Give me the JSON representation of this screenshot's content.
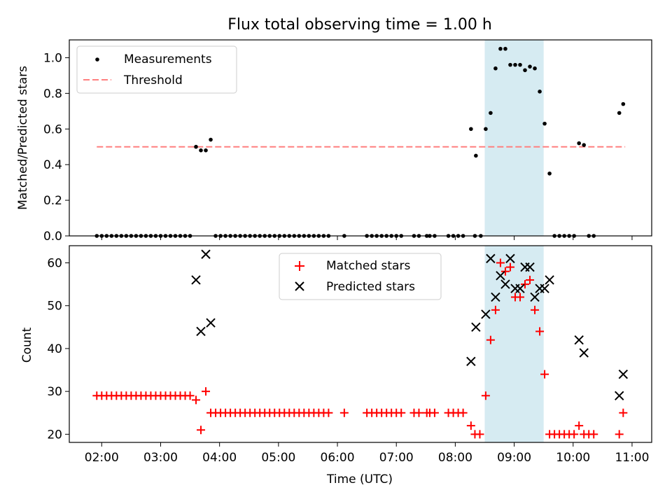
{
  "figure": {
    "title": "Flux total observing time = 1.00 h"
  },
  "colors": {
    "measurement": "#000000",
    "threshold": "#ff7f7f",
    "matched": "#ff0000",
    "predicted": "#000000",
    "highlight": "#add8e6"
  },
  "chart_data": [
    {
      "type": "scatter",
      "xlabel": "",
      "ylabel": "Matched/Predicted stars",
      "xlim": [
        "01:27",
        "11:20"
      ],
      "ylim": [
        0,
        1.1
      ],
      "yticks": [
        "0.0",
        "0.2",
        "0.4",
        "0.6",
        "0.8",
        "1.0"
      ],
      "legend_position": "upper-left",
      "highlight_span": [
        "08:30",
        "09:30"
      ],
      "series": [
        {
          "name": "Measurements",
          "marker": "dot",
          "points": [
            [
              "01:55",
              0
            ],
            [
              "02:00",
              0
            ],
            [
              "02:05",
              0
            ],
            [
              "02:10",
              0
            ],
            [
              "02:15",
              0
            ],
            [
              "02:20",
              0
            ],
            [
              "02:25",
              0
            ],
            [
              "02:30",
              0
            ],
            [
              "02:35",
              0
            ],
            [
              "02:40",
              0
            ],
            [
              "02:45",
              0
            ],
            [
              "02:50",
              0
            ],
            [
              "02:55",
              0
            ],
            [
              "03:00",
              0
            ],
            [
              "03:05",
              0
            ],
            [
              "03:10",
              0
            ],
            [
              "03:15",
              0
            ],
            [
              "03:20",
              0
            ],
            [
              "03:25",
              0
            ],
            [
              "03:30",
              0
            ],
            [
              "03:36",
              0.5
            ],
            [
              "03:41",
              0.48
            ],
            [
              "03:46",
              0.48
            ],
            [
              "03:51",
              0.54
            ],
            [
              "03:56",
              0
            ],
            [
              "04:01",
              0
            ],
            [
              "04:06",
              0
            ],
            [
              "04:11",
              0
            ],
            [
              "04:16",
              0
            ],
            [
              "04:21",
              0
            ],
            [
              "04:26",
              0
            ],
            [
              "04:31",
              0
            ],
            [
              "04:36",
              0
            ],
            [
              "04:41",
              0
            ],
            [
              "04:46",
              0
            ],
            [
              "04:51",
              0
            ],
            [
              "04:56",
              0
            ],
            [
              "05:01",
              0
            ],
            [
              "05:06",
              0
            ],
            [
              "05:11",
              0
            ],
            [
              "05:16",
              0
            ],
            [
              "05:21",
              0
            ],
            [
              "05:26",
              0
            ],
            [
              "05:31",
              0
            ],
            [
              "05:36",
              0
            ],
            [
              "05:41",
              0
            ],
            [
              "05:46",
              0
            ],
            [
              "05:51",
              0
            ],
            [
              "06:07",
              0
            ],
            [
              "06:30",
              0
            ],
            [
              "06:35",
              0
            ],
            [
              "06:40",
              0
            ],
            [
              "06:45",
              0
            ],
            [
              "06:50",
              0
            ],
            [
              "06:55",
              0
            ],
            [
              "07:00",
              0
            ],
            [
              "07:05",
              0
            ],
            [
              "07:18",
              0
            ],
            [
              "07:23",
              0
            ],
            [
              "07:31",
              0
            ],
            [
              "07:34",
              0
            ],
            [
              "07:39",
              0
            ],
            [
              "07:53",
              0
            ],
            [
              "07:58",
              0
            ],
            [
              "08:03",
              0
            ],
            [
              "08:08",
              0
            ],
            [
              "08:16",
              0.6
            ],
            [
              "08:20",
              0
            ],
            [
              "08:21",
              0.45
            ],
            [
              "08:26",
              0
            ],
            [
              "08:31",
              0.6
            ],
            [
              "08:36",
              0.69
            ],
            [
              "08:41",
              0.94
            ],
            [
              "08:46",
              1.05
            ],
            [
              "08:51",
              1.05
            ],
            [
              "08:56",
              0.96
            ],
            [
              "09:01",
              0.96
            ],
            [
              "09:06",
              0.96
            ],
            [
              "09:11",
              0.93
            ],
            [
              "09:16",
              0.95
            ],
            [
              "09:21",
              0.94
            ],
            [
              "09:26",
              0.81
            ],
            [
              "09:31",
              0.63
            ],
            [
              "09:36",
              0.35
            ],
            [
              "09:41",
              0
            ],
            [
              "09:46",
              0
            ],
            [
              "09:51",
              0
            ],
            [
              "09:56",
              0
            ],
            [
              "10:01",
              0
            ],
            [
              "10:06",
              0.52
            ],
            [
              "10:11",
              0.51
            ],
            [
              "10:16",
              0
            ],
            [
              "10:21",
              0
            ],
            [
              "10:47",
              0.69
            ],
            [
              "10:51",
              0.74
            ]
          ]
        },
        {
          "name": "Threshold",
          "marker": "dashed-line",
          "points": [
            [
              "01:55",
              0.5
            ],
            [
              "10:53",
              0.5
            ]
          ]
        }
      ]
    },
    {
      "type": "scatter",
      "xlabel": "Time (UTC)",
      "ylabel": "Count",
      "xlim": [
        "01:27",
        "11:20"
      ],
      "ylim": [
        18.1,
        64
      ],
      "xticks": [
        "02:00",
        "03:00",
        "04:00",
        "05:00",
        "06:00",
        "07:00",
        "08:00",
        "09:00",
        "10:00",
        "11:00"
      ],
      "yticks": [
        "20",
        "30",
        "40",
        "50",
        "60"
      ],
      "legend_position": "upper-center",
      "highlight_span": [
        "08:30",
        "09:30"
      ],
      "series": [
        {
          "name": "Matched stars",
          "marker": "plus",
          "points": [
            [
              "01:55",
              29
            ],
            [
              "02:00",
              29
            ],
            [
              "02:05",
              29
            ],
            [
              "02:10",
              29
            ],
            [
              "02:15",
              29
            ],
            [
              "02:20",
              29
            ],
            [
              "02:25",
              29
            ],
            [
              "02:30",
              29
            ],
            [
              "02:35",
              29
            ],
            [
              "02:40",
              29
            ],
            [
              "02:45",
              29
            ],
            [
              "02:50",
              29
            ],
            [
              "02:55",
              29
            ],
            [
              "03:00",
              29
            ],
            [
              "03:05",
              29
            ],
            [
              "03:10",
              29
            ],
            [
              "03:15",
              29
            ],
            [
              "03:20",
              29
            ],
            [
              "03:25",
              29
            ],
            [
              "03:30",
              29
            ],
            [
              "03:36",
              28
            ],
            [
              "03:41",
              21
            ],
            [
              "03:46",
              30
            ],
            [
              "03:51",
              25
            ],
            [
              "03:56",
              25
            ],
            [
              "04:01",
              25
            ],
            [
              "04:06",
              25
            ],
            [
              "04:11",
              25
            ],
            [
              "04:16",
              25
            ],
            [
              "04:21",
              25
            ],
            [
              "04:26",
              25
            ],
            [
              "04:31",
              25
            ],
            [
              "04:36",
              25
            ],
            [
              "04:41",
              25
            ],
            [
              "04:46",
              25
            ],
            [
              "04:51",
              25
            ],
            [
              "04:56",
              25
            ],
            [
              "05:01",
              25
            ],
            [
              "05:06",
              25
            ],
            [
              "05:11",
              25
            ],
            [
              "05:16",
              25
            ],
            [
              "05:21",
              25
            ],
            [
              "05:26",
              25
            ],
            [
              "05:31",
              25
            ],
            [
              "05:36",
              25
            ],
            [
              "05:41",
              25
            ],
            [
              "05:46",
              25
            ],
            [
              "05:51",
              25
            ],
            [
              "06:07",
              25
            ],
            [
              "06:30",
              25
            ],
            [
              "06:35",
              25
            ],
            [
              "06:40",
              25
            ],
            [
              "06:45",
              25
            ],
            [
              "06:50",
              25
            ],
            [
              "06:55",
              25
            ],
            [
              "07:00",
              25
            ],
            [
              "07:05",
              25
            ],
            [
              "07:18",
              25
            ],
            [
              "07:23",
              25
            ],
            [
              "07:31",
              25
            ],
            [
              "07:34",
              25
            ],
            [
              "07:39",
              25
            ],
            [
              "07:53",
              25
            ],
            [
              "07:58",
              25
            ],
            [
              "08:03",
              25
            ],
            [
              "08:08",
              25
            ],
            [
              "08:16",
              22
            ],
            [
              "08:20",
              20
            ],
            [
              "08:25",
              20
            ],
            [
              "08:31",
              29
            ],
            [
              "08:36",
              42
            ],
            [
              "08:41",
              49
            ],
            [
              "08:46",
              60
            ],
            [
              "08:51",
              58
            ],
            [
              "08:56",
              59
            ],
            [
              "09:01",
              52
            ],
            [
              "09:06",
              52
            ],
            [
              "09:11",
              55
            ],
            [
              "09:16",
              56
            ],
            [
              "09:21",
              49
            ],
            [
              "09:26",
              44
            ],
            [
              "09:31",
              34
            ],
            [
              "09:36",
              20
            ],
            [
              "09:41",
              20
            ],
            [
              "09:46",
              20
            ],
            [
              "09:51",
              20
            ],
            [
              "09:56",
              20
            ],
            [
              "10:01",
              20
            ],
            [
              "10:06",
              22
            ],
            [
              "10:11",
              20
            ],
            [
              "10:16",
              20
            ],
            [
              "10:21",
              20
            ],
            [
              "10:47",
              20
            ],
            [
              "10:51",
              25
            ]
          ]
        },
        {
          "name": "Predicted stars",
          "marker": "x",
          "points": [
            [
              "03:36",
              56
            ],
            [
              "03:41",
              44
            ],
            [
              "03:46",
              62
            ],
            [
              "03:51",
              46
            ],
            [
              "08:16",
              37
            ],
            [
              "08:21",
              45
            ],
            [
              "08:31",
              48
            ],
            [
              "08:36",
              61
            ],
            [
              "08:41",
              52
            ],
            [
              "08:46",
              57
            ],
            [
              "08:51",
              55
            ],
            [
              "08:56",
              61
            ],
            [
              "09:01",
              54
            ],
            [
              "09:06",
              54
            ],
            [
              "09:11",
              59
            ],
            [
              "09:16",
              59
            ],
            [
              "09:21",
              52
            ],
            [
              "09:26",
              54
            ],
            [
              "09:31",
              54
            ],
            [
              "09:36",
              56
            ],
            [
              "10:06",
              42
            ],
            [
              "10:11",
              39
            ],
            [
              "10:47",
              29
            ],
            [
              "10:51",
              34
            ]
          ]
        }
      ]
    }
  ]
}
